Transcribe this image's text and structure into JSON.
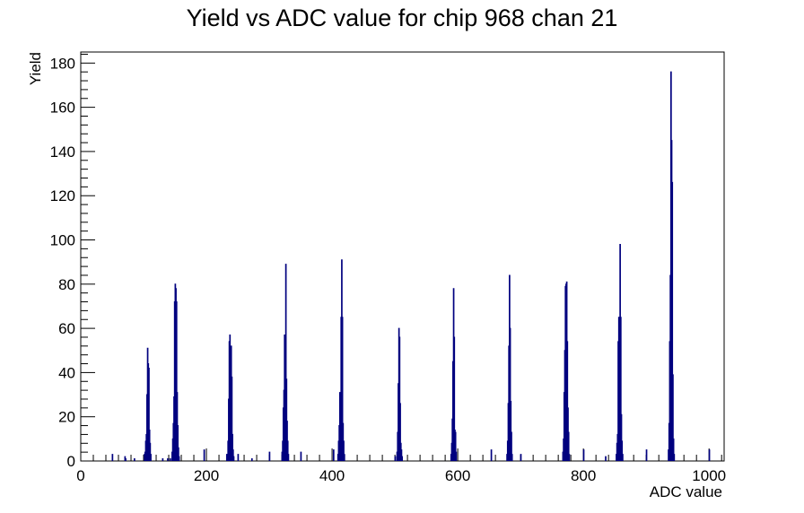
{
  "chart_data": {
    "type": "histogram",
    "title": "Yield vs ADC value for chip 968 chan 21",
    "xlabel": "ADC value",
    "ylabel": "Yield",
    "xlim": [
      0,
      1024
    ],
    "ylim": [
      0,
      185
    ],
    "x_ticks": [
      0,
      200,
      400,
      600,
      800,
      1000
    ],
    "y_ticks": [
      0,
      20,
      40,
      60,
      80,
      100,
      120,
      140,
      160,
      180
    ],
    "grid": false,
    "legend": "none",
    "line_color": "#00007f",
    "bin_width": 1,
    "bins": [
      [
        50,
        3
      ],
      [
        70,
        2
      ],
      [
        71,
        1
      ],
      [
        85,
        1
      ],
      [
        101,
        3
      ],
      [
        102,
        4
      ],
      [
        103,
        9
      ],
      [
        104,
        12
      ],
      [
        105,
        30
      ],
      [
        106,
        51
      ],
      [
        107,
        44
      ],
      [
        108,
        42
      ],
      [
        109,
        14
      ],
      [
        110,
        8
      ],
      [
        111,
        3
      ],
      [
        130,
        1
      ],
      [
        138,
        1
      ],
      [
        142,
        1
      ],
      [
        145,
        4
      ],
      [
        146,
        10
      ],
      [
        147,
        17
      ],
      [
        148,
        29
      ],
      [
        149,
        72
      ],
      [
        150,
        80
      ],
      [
        151,
        78
      ],
      [
        152,
        72
      ],
      [
        153,
        31
      ],
      [
        154,
        16
      ],
      [
        155,
        6
      ],
      [
        156,
        2
      ],
      [
        196,
        5
      ],
      [
        232,
        3
      ],
      [
        234,
        9
      ],
      [
        235,
        28
      ],
      [
        236,
        54
      ],
      [
        237,
        57
      ],
      [
        238,
        22
      ],
      [
        239,
        52
      ],
      [
        240,
        38
      ],
      [
        241,
        12
      ],
      [
        242,
        5
      ],
      [
        243,
        2
      ],
      [
        250,
        3
      ],
      [
        272,
        1
      ],
      [
        300,
        4
      ],
      [
        320,
        4
      ],
      [
        321,
        9
      ],
      [
        322,
        24
      ],
      [
        323,
        32
      ],
      [
        324,
        57
      ],
      [
        325,
        53
      ],
      [
        326,
        89
      ],
      [
        327,
        37
      ],
      [
        328,
        18
      ],
      [
        329,
        9
      ],
      [
        330,
        3
      ],
      [
        350,
        4
      ],
      [
        402,
        5
      ],
      [
        409,
        3
      ],
      [
        410,
        9
      ],
      [
        411,
        16
      ],
      [
        412,
        31
      ],
      [
        413,
        27
      ],
      [
        414,
        65
      ],
      [
        415,
        91
      ],
      [
        416,
        65
      ],
      [
        417,
        17
      ],
      [
        418,
        9
      ],
      [
        419,
        3
      ],
      [
        500,
        2
      ],
      [
        503,
        4
      ],
      [
        504,
        13
      ],
      [
        505,
        35
      ],
      [
        506,
        60
      ],
      [
        507,
        56
      ],
      [
        508,
        26
      ],
      [
        509,
        8
      ],
      [
        510,
        5
      ],
      [
        511,
        2
      ],
      [
        589,
        3
      ],
      [
        590,
        8
      ],
      [
        591,
        19
      ],
      [
        592,
        45
      ],
      [
        593,
        78
      ],
      [
        594,
        56
      ],
      [
        595,
        14
      ],
      [
        596,
        13
      ],
      [
        597,
        4
      ],
      [
        653,
        5
      ],
      [
        678,
        3
      ],
      [
        679,
        9
      ],
      [
        680,
        26
      ],
      [
        681,
        52
      ],
      [
        682,
        84
      ],
      [
        683,
        60
      ],
      [
        684,
        27
      ],
      [
        685,
        13
      ],
      [
        686,
        3
      ],
      [
        700,
        3
      ],
      [
        767,
        4
      ],
      [
        768,
        10
      ],
      [
        769,
        31
      ],
      [
        770,
        50
      ],
      [
        771,
        79
      ],
      [
        772,
        80
      ],
      [
        773,
        81
      ],
      [
        774,
        54
      ],
      [
        775,
        24
      ],
      [
        776,
        13
      ],
      [
        777,
        3
      ],
      [
        800,
        5
      ],
      [
        835,
        2
      ],
      [
        852,
        3
      ],
      [
        853,
        8
      ],
      [
        854,
        12
      ],
      [
        855,
        54
      ],
      [
        856,
        65
      ],
      [
        857,
        64
      ],
      [
        858,
        98
      ],
      [
        859,
        65
      ],
      [
        860,
        21
      ],
      [
        861,
        9
      ],
      [
        862,
        3
      ],
      [
        900,
        5
      ],
      [
        935,
        5
      ],
      [
        936,
        17
      ],
      [
        937,
        54
      ],
      [
        938,
        84
      ],
      [
        939,
        176
      ],
      [
        940,
        145
      ],
      [
        941,
        126
      ],
      [
        942,
        39
      ],
      [
        943,
        10
      ],
      [
        944,
        3
      ],
      [
        1000,
        5
      ]
    ]
  }
}
